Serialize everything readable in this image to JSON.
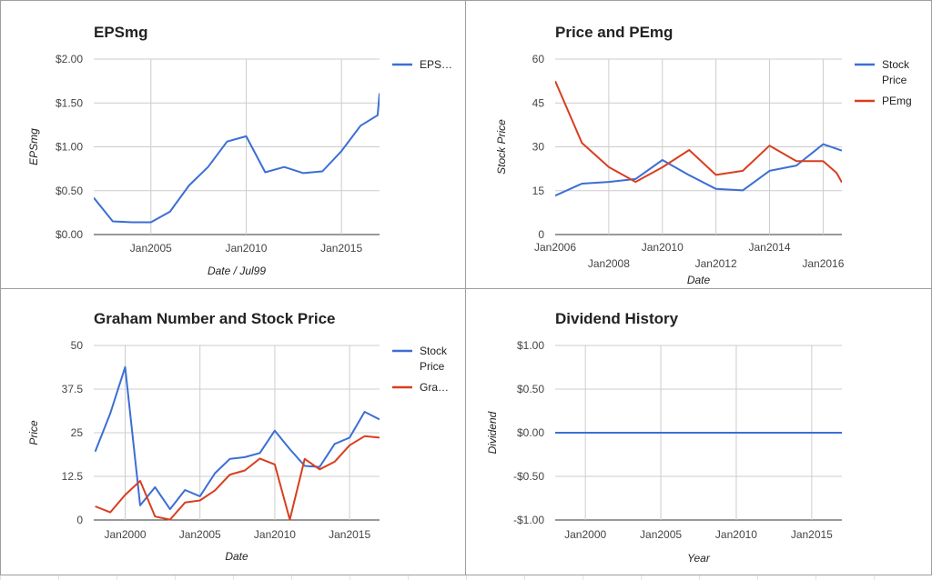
{
  "chart_data": [
    {
      "type": "line",
      "title": "EPSmg",
      "xlabel": "Date / Jul99",
      "ylabel": "EPSmg",
      "xlim": [
        2002,
        2017
      ],
      "ylim": [
        0,
        2
      ],
      "y_ticks": [
        0,
        0.5,
        1,
        1.5,
        2
      ],
      "y_tick_labels": [
        "$0.00",
        "$0.50",
        "$1.00",
        "$1.50",
        "$2.00"
      ],
      "x_ticks": [
        2005,
        2010,
        2015
      ],
      "x_tick_labels": [
        "Jan2005",
        "Jan2010",
        "Jan2015"
      ],
      "grid": true,
      "legend_position": "right",
      "series": [
        {
          "name": "EPS…",
          "color": "#3c6ed4",
          "x": [
            2002,
            2003,
            2004,
            2005,
            2006,
            2007,
            2008,
            2009,
            2010,
            2011,
            2012,
            2013,
            2014,
            2015,
            2016,
            2016.9,
            2017
          ],
          "y": [
            0.42,
            0.15,
            0.14,
            0.14,
            0.26,
            0.56,
            0.77,
            1.06,
            1.12,
            0.71,
            0.77,
            0.7,
            0.72,
            0.95,
            1.24,
            1.36,
            1.61
          ]
        }
      ]
    },
    {
      "type": "line",
      "title": "Price and PEmg",
      "xlabel": "Date",
      "ylabel": "Stock Price",
      "xlim": [
        2006,
        2016.7
      ],
      "ylim": [
        0,
        60
      ],
      "y_ticks": [
        0,
        15,
        30,
        45,
        60
      ],
      "y_tick_labels": [
        "0",
        "15",
        "30",
        "45",
        "60"
      ],
      "x_ticks": [
        2006,
        2008,
        2010,
        2012,
        2014,
        2016
      ],
      "x_tick_labels": [
        "Jan2006",
        "Jan2008",
        "Jan2010",
        "Jan2012",
        "Jan2014",
        "Jan2016"
      ],
      "grid": true,
      "legend_position": "right",
      "series": [
        {
          "name": "Stock Price",
          "color": "#3c6ed4",
          "x": [
            2006,
            2007,
            2008,
            2009,
            2010,
            2011,
            2012,
            2013,
            2014,
            2015,
            2016,
            2016.7
          ],
          "y": [
            13.3,
            17.4,
            18.0,
            19.0,
            25.5,
            20.3,
            15.6,
            15.1,
            21.8,
            23.6,
            30.9,
            28.7
          ]
        },
        {
          "name": "PEmg",
          "color": "#d93e1f",
          "x": [
            2006,
            2007,
            2008,
            2009,
            2010,
            2011,
            2012,
            2013,
            2014,
            2015,
            2016,
            2016.5,
            2016.7
          ],
          "y": [
            52.5,
            31.3,
            23.1,
            18.0,
            23.0,
            28.9,
            20.4,
            21.8,
            30.4,
            25.1,
            25.1,
            21.1,
            17.8
          ]
        }
      ]
    },
    {
      "type": "line",
      "title": "Graham Number and Stock Price",
      "xlabel": "Date",
      "ylabel": "Price",
      "xlim": [
        1997.9,
        2017
      ],
      "ylim": [
        0,
        50
      ],
      "y_ticks": [
        0,
        12.5,
        25,
        37.5,
        50
      ],
      "y_tick_labels": [
        "0",
        "12.5",
        "25",
        "37.5",
        "50"
      ],
      "x_ticks": [
        2000,
        2005,
        2010,
        2015
      ],
      "x_tick_labels": [
        "Jan2000",
        "Jan2005",
        "Jan2010",
        "Jan2015"
      ],
      "grid": true,
      "legend_position": "right",
      "series": [
        {
          "name": "Stock Price",
          "color": "#3c6ed4",
          "x": [
            1998,
            1999,
            2000,
            2001,
            2002,
            2003,
            2004,
            2005,
            2006,
            2007,
            2008,
            2009,
            2010,
            2011,
            2012,
            2013,
            2014,
            2015,
            2016,
            2017
          ],
          "y": [
            19.6,
            30.5,
            43.8,
            4.2,
            9.4,
            3.1,
            8.6,
            6.8,
            13.4,
            17.5,
            18.0,
            19.2,
            25.6,
            20.3,
            15.5,
            15.2,
            21.8,
            23.6,
            31.0,
            28.8
          ]
        },
        {
          "name": "Gra…",
          "color": "#d93e1f",
          "x": [
            1998,
            1999,
            2000,
            2001,
            2002,
            2003,
            2004,
            2005,
            2006,
            2007,
            2008,
            2009,
            2010,
            2011,
            2012,
            2013,
            2014,
            2015,
            2016,
            2017
          ],
          "y": [
            3.9,
            2.2,
            7.2,
            11.2,
            1.0,
            0.1,
            5.0,
            5.6,
            8.5,
            13.0,
            14.2,
            17.6,
            15.9,
            0.1,
            17.5,
            14.5,
            16.7,
            21.4,
            24.0,
            23.6
          ]
        }
      ]
    },
    {
      "type": "line",
      "title": "Dividend History",
      "xlabel": "Year",
      "ylabel": "Dividend",
      "xlim": [
        1998,
        2017
      ],
      "ylim": [
        -1,
        1
      ],
      "y_ticks": [
        -1,
        -0.5,
        0,
        0.5,
        1
      ],
      "y_tick_labels": [
        "-$1.00",
        "-$0.50",
        "$0.00",
        "$0.50",
        "$1.00"
      ],
      "x_ticks": [
        2000,
        2005,
        2010,
        2015
      ],
      "x_tick_labels": [
        "Jan2000",
        "Jan2005",
        "Jan2010",
        "Jan2015"
      ],
      "grid": true,
      "legend_position": "none",
      "series": [
        {
          "color": "#3c6ed4",
          "x": [
            1998,
            2017
          ],
          "y": [
            0,
            0
          ]
        }
      ]
    }
  ]
}
